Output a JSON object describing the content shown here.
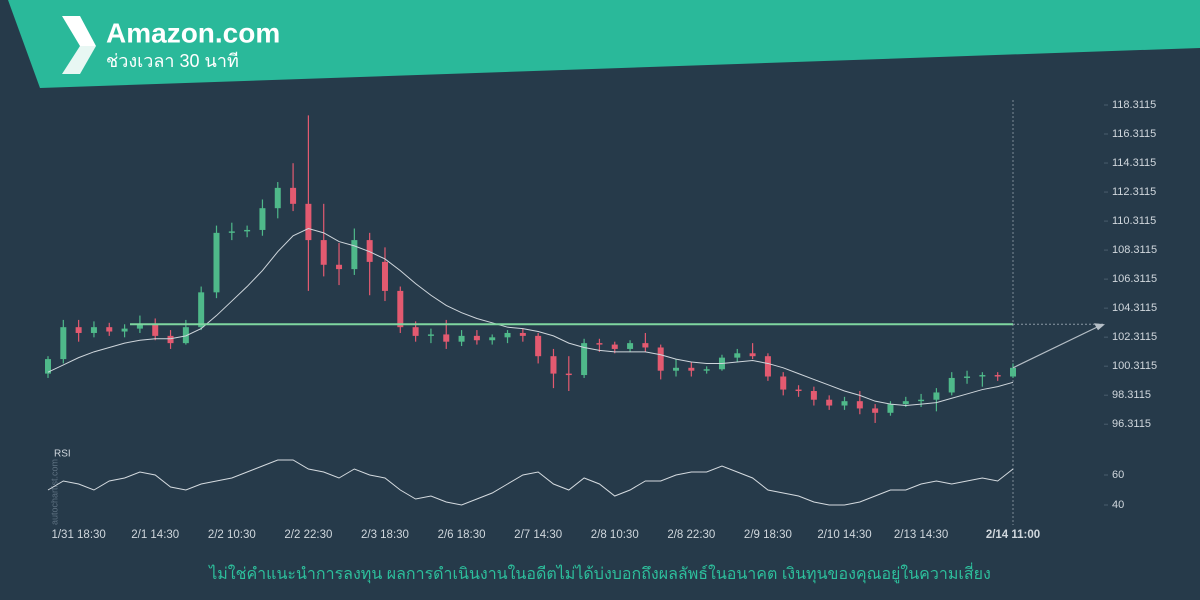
{
  "header": {
    "title": "Amazon.com",
    "subtitle": "ช่วงเวลา 30 นาที"
  },
  "watermark": "autochartist.com",
  "footer": "ไม่ใช่คำแนะนำการลงทุน ผลการดำเนินงานในอดีตไม่ได้บ่งบอกถึงผลลัพธ์ในอนาคต เงินทุนของคุณอยู่ในความเสี่ยง",
  "chart_data": [
    {
      "type": "candlestick",
      "categories": [
        null,
        null,
        "1/31 18:30",
        null,
        null,
        null,
        null,
        "2/1 14:30",
        null,
        null,
        null,
        null,
        "2/2 10:30",
        null,
        null,
        null,
        null,
        "2/2 22:30",
        null,
        null,
        null,
        null,
        "2/3 18:30",
        null,
        null,
        null,
        null,
        "2/6 18:30",
        null,
        null,
        null,
        null,
        "2/7 14:30",
        null,
        null,
        null,
        null,
        "2/8 10:30",
        null,
        null,
        null,
        null,
        "2/8 22:30",
        null,
        null,
        null,
        null,
        "2/9 18:30",
        null,
        null,
        null,
        null,
        "2/10 14:30",
        null,
        null,
        null,
        null,
        "2/13 14:30",
        null,
        null,
        null,
        null,
        null,
        "2/14 11:00"
      ],
      "open": [
        99.8,
        100.8,
        103,
        102.6,
        103,
        102.7,
        102.9,
        103.2,
        102.4,
        101.9,
        103,
        105.4,
        109.5,
        109.6,
        109.7,
        111.2,
        112.6,
        111.5,
        109,
        107.3,
        107,
        109,
        107.5,
        105.5,
        103,
        102.4,
        102.5,
        102,
        102.4,
        102.1,
        102.3,
        102.6,
        102.4,
        101,
        99.8,
        99.7,
        101.9,
        101.8,
        101.5,
        101.9,
        101.6,
        100,
        100.2,
        100,
        100.1,
        100.9,
        101.2,
        101,
        99.6,
        98.7,
        98.6,
        98,
        97.6,
        97.9,
        97.4,
        97.1,
        97.7,
        97.9,
        98,
        98.5,
        99.5,
        99.6,
        99.7,
        99.6
      ],
      "high": [
        101,
        103.5,
        103.5,
        103.4,
        103.3,
        103.2,
        103.8,
        103.6,
        102.8,
        103.5,
        105.8,
        110,
        110.2,
        110,
        111.8,
        113,
        114.3,
        117.6,
        111.5,
        108.8,
        109.8,
        109.5,
        108.5,
        105.8,
        103.4,
        102.9,
        103.5,
        102.8,
        102.8,
        102.5,
        102.8,
        102.9,
        102.6,
        101.5,
        101,
        102.2,
        102.2,
        102,
        102.1,
        102.6,
        101.8,
        100.8,
        100.6,
        100.3,
        101.1,
        101.5,
        101.9,
        101.2,
        99.9,
        99,
        98.9,
        98.3,
        98.2,
        98.6,
        97.7,
        97.9,
        98.2,
        98.4,
        98.8,
        99.9,
        100,
        99.9,
        99.9,
        100.5
      ],
      "low": [
        99.5,
        100.5,
        102,
        102.3,
        102.4,
        102.3,
        102.6,
        102.1,
        101.5,
        101.8,
        102.8,
        105,
        109,
        109.2,
        109.3,
        110.5,
        111,
        105.5,
        106.5,
        105.9,
        106.6,
        105.2,
        104.8,
        102.6,
        102,
        101.9,
        101.5,
        101.7,
        101.8,
        101.8,
        101.9,
        102,
        100.5,
        98.8,
        98.6,
        99.5,
        101.3,
        101.2,
        101.3,
        101.3,
        99.4,
        99.6,
        99.6,
        99.8,
        100,
        100.6,
        100.8,
        99.3,
        98.3,
        98.2,
        97.6,
        97.3,
        97.3,
        97,
        96.4,
        96.9,
        97.5,
        97.5,
        97.2,
        98.3,
        99.1,
        98.9,
        99.3,
        99.5
      ],
      "close": [
        100.8,
        103,
        102.6,
        103,
        102.7,
        102.9,
        103.2,
        102.4,
        101.9,
        103,
        105.4,
        109.5,
        109.6,
        109.7,
        111.2,
        112.6,
        111.5,
        109,
        107.3,
        107,
        109,
        107.5,
        105.5,
        103,
        102.4,
        102.5,
        102,
        102.4,
        102.1,
        102.3,
        102.6,
        102.4,
        101,
        99.8,
        99.7,
        101.9,
        101.8,
        101.5,
        101.9,
        101.6,
        100,
        100.2,
        100,
        100.1,
        100.9,
        101.2,
        101,
        99.6,
        98.7,
        98.6,
        98,
        97.6,
        97.9,
        97.4,
        97.1,
        97.7,
        97.9,
        98,
        98.5,
        99.5,
        99.6,
        99.7,
        99.6,
        100.2
      ],
      "up_color": "#4fb98a",
      "down_color": "#e35a70",
      "moving_average": {
        "color": "#cfd6dc",
        "values": [
          99.9,
          100.4,
          100.9,
          101.3,
          101.6,
          101.9,
          102.1,
          102.2,
          102.2,
          102.4,
          102.9,
          103.8,
          104.8,
          105.8,
          106.9,
          108.2,
          109.3,
          109.8,
          109.5,
          108.9,
          108.6,
          108.2,
          107.7,
          106.9,
          106,
          105.2,
          104.5,
          104,
          103.6,
          103.3,
          103,
          102.9,
          102.7,
          102.4,
          101.9,
          101.6,
          101.4,
          101.3,
          101.3,
          101.3,
          101.1,
          100.8,
          100.6,
          100.5,
          100.5,
          100.6,
          100.7,
          100.5,
          100.2,
          99.8,
          99.4,
          99,
          98.6,
          98.3,
          97.9,
          97.7,
          97.6,
          97.7,
          97.8,
          98.1,
          98.4,
          98.7,
          98.9,
          99.2
        ]
      },
      "level": {
        "value": 103.2,
        "color": "#7fd6a0"
      },
      "ylim": [
        95.5,
        119
      ],
      "yticks": [
        96.3115,
        98.3115,
        100.3115,
        102.3115,
        104.3115,
        106.3115,
        108.3115,
        110.3115,
        112.3115,
        114.3115,
        116.3115,
        118.3115
      ]
    },
    {
      "type": "line",
      "title": "RSI",
      "color": "#d5dbe0",
      "values": [
        50,
        56,
        54,
        50,
        56,
        58,
        62,
        60,
        52,
        50,
        54,
        56,
        58,
        62,
        66,
        70,
        70,
        64,
        62,
        58,
        64,
        60,
        58,
        50,
        44,
        46,
        42,
        40,
        44,
        48,
        54,
        60,
        62,
        54,
        50,
        58,
        54,
        46,
        50,
        56,
        56,
        60,
        62,
        62,
        66,
        62,
        58,
        50,
        48,
        46,
        42,
        40,
        40,
        42,
        46,
        50,
        50,
        54,
        56,
        54,
        56,
        58,
        56,
        64
      ],
      "ylim": [
        30,
        80
      ],
      "yticks": [
        40,
        60
      ]
    }
  ]
}
